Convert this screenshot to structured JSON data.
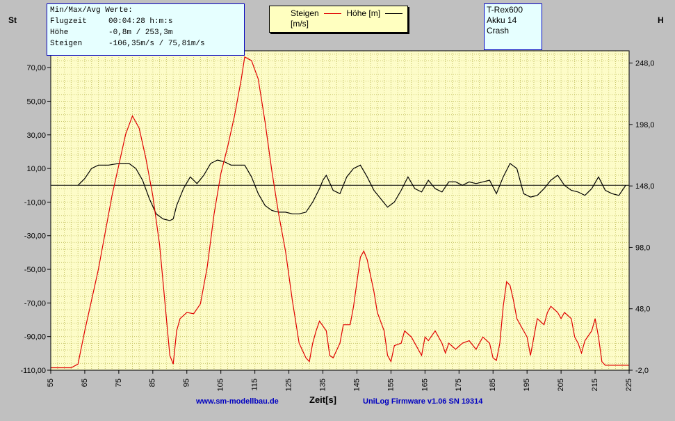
{
  "stats": {
    "heading": "Min/Max/Avg Werte:",
    "rows": [
      {
        "label": "Flugzeit",
        "value": "00:04:28 h:m:s"
      },
      {
        "label": "Höhe",
        "value": "-0,8m / 253,3m"
      },
      {
        "label": "Steigen",
        "value": "-106,35m/s / 75,81m/s"
      }
    ]
  },
  "legend": {
    "series1": "Steigen",
    "series2": "Höhe [m]",
    "unit": "[m/s]"
  },
  "info": {
    "line1": "T-Rex600",
    "line2": "Akku 14",
    "line3": "Crash"
  },
  "left_axis_title": "St",
  "right_axis_title": "H",
  "footer": {
    "website": "www.sm-modellbau.de",
    "firmware": "UniLog Firmware v1.06 SN 19314"
  },
  "colors": {
    "plot_bg": "#fdfcc8",
    "grid": "#c8c66a",
    "hoehe": "#e00000",
    "steigen": "#000000",
    "axis": "#000000"
  },
  "chart_data": {
    "type": "line",
    "xlabel": "Zeit[s]",
    "xlim": [
      55,
      225
    ],
    "xticks": [
      "55",
      "65",
      "75",
      "85",
      "95",
      "105",
      "115",
      "125",
      "135",
      "145",
      "155",
      "165",
      "175",
      "185",
      "195",
      "205",
      "215",
      "225"
    ],
    "ylim_left": [
      -110,
      80
    ],
    "yticks_left": [
      "70,00",
      "50,00",
      "30,00",
      "10,00",
      "-10,00",
      "-30,00",
      "-50,00",
      "-70,00",
      "-90,00",
      "-110,00"
    ],
    "ylim_right": [
      -2,
      258
    ],
    "yticks_right": [
      "248,0",
      "198,0",
      "148,0",
      "98,0",
      "48,0",
      "-2,0"
    ],
    "zero_line_left": 0,
    "series": [
      {
        "name": "Steigen",
        "axis": "left",
        "points": [
          [
            63,
            0
          ],
          [
            65,
            4
          ],
          [
            67,
            10
          ],
          [
            69,
            12
          ],
          [
            72,
            12
          ],
          [
            75,
            13
          ],
          [
            78,
            13
          ],
          [
            80,
            10
          ],
          [
            82,
            3
          ],
          [
            84,
            -8
          ],
          [
            86,
            -17
          ],
          [
            88,
            -20
          ],
          [
            90,
            -21
          ],
          [
            91,
            -20
          ],
          [
            92,
            -12
          ],
          [
            94,
            -2
          ],
          [
            96,
            5
          ],
          [
            98,
            1
          ],
          [
            100,
            6
          ],
          [
            102,
            13
          ],
          [
            104,
            15
          ],
          [
            106,
            14
          ],
          [
            108,
            12
          ],
          [
            110,
            12
          ],
          [
            112,
            12
          ],
          [
            114,
            5
          ],
          [
            116,
            -5
          ],
          [
            118,
            -12
          ],
          [
            120,
            -15
          ],
          [
            122,
            -16
          ],
          [
            124,
            -16
          ],
          [
            126,
            -17
          ],
          [
            128,
            -17
          ],
          [
            130,
            -16
          ],
          [
            132,
            -10
          ],
          [
            134,
            -2
          ],
          [
            135,
            3
          ],
          [
            136,
            6
          ],
          [
            138,
            -3
          ],
          [
            140,
            -5
          ],
          [
            142,
            5
          ],
          [
            144,
            10
          ],
          [
            146,
            12
          ],
          [
            148,
            5
          ],
          [
            150,
            -3
          ],
          [
            152,
            -8
          ],
          [
            154,
            -13
          ],
          [
            156,
            -10
          ],
          [
            158,
            -3
          ],
          [
            160,
            5
          ],
          [
            162,
            -2
          ],
          [
            164,
            -4
          ],
          [
            166,
            3
          ],
          [
            168,
            -2
          ],
          [
            170,
            -4
          ],
          [
            172,
            2
          ],
          [
            174,
            2
          ],
          [
            176,
            0
          ],
          [
            178,
            2
          ],
          [
            180,
            1
          ],
          [
            182,
            2
          ],
          [
            184,
            3
          ],
          [
            186,
            -5
          ],
          [
            188,
            5
          ],
          [
            190,
            13
          ],
          [
            192,
            10
          ],
          [
            194,
            -5
          ],
          [
            196,
            -7
          ],
          [
            198,
            -6
          ],
          [
            200,
            -2
          ],
          [
            202,
            3
          ],
          [
            204,
            6
          ],
          [
            206,
            0
          ],
          [
            208,
            -3
          ],
          [
            210,
            -4
          ],
          [
            212,
            -6
          ],
          [
            214,
            -2
          ],
          [
            216,
            5
          ],
          [
            218,
            -3
          ],
          [
            220,
            -5
          ],
          [
            222,
            -6
          ],
          [
            223,
            -3
          ],
          [
            224,
            0
          ]
        ]
      },
      {
        "name": "Höhe",
        "axis": "right",
        "points": [
          [
            55,
            0
          ],
          [
            58,
            0
          ],
          [
            61,
            0
          ],
          [
            63,
            3
          ],
          [
            65,
            30
          ],
          [
            67,
            55
          ],
          [
            69,
            80
          ],
          [
            71,
            110
          ],
          [
            73,
            140
          ],
          [
            75,
            165
          ],
          [
            77,
            190
          ],
          [
            79,
            205
          ],
          [
            81,
            195
          ],
          [
            83,
            170
          ],
          [
            85,
            140
          ],
          [
            87,
            100
          ],
          [
            89,
            40
          ],
          [
            90,
            10
          ],
          [
            91,
            3
          ],
          [
            92,
            30
          ],
          [
            93,
            40
          ],
          [
            95,
            45
          ],
          [
            97,
            44
          ],
          [
            99,
            52
          ],
          [
            101,
            82
          ],
          [
            103,
            125
          ],
          [
            105,
            158
          ],
          [
            107,
            180
          ],
          [
            109,
            205
          ],
          [
            111,
            235
          ],
          [
            112,
            253
          ],
          [
            114,
            250
          ],
          [
            116,
            235
          ],
          [
            118,
            200
          ],
          [
            120,
            160
          ],
          [
            122,
            125
          ],
          [
            124,
            95
          ],
          [
            126,
            55
          ],
          [
            128,
            20
          ],
          [
            130,
            8
          ],
          [
            131,
            5
          ],
          [
            132,
            20
          ],
          [
            133,
            30
          ],
          [
            134,
            38
          ],
          [
            136,
            30
          ],
          [
            137,
            10
          ],
          [
            138,
            8
          ],
          [
            140,
            20
          ],
          [
            141,
            35
          ],
          [
            143,
            35
          ],
          [
            144,
            50
          ],
          [
            146,
            90
          ],
          [
            147,
            95
          ],
          [
            148,
            88
          ],
          [
            150,
            62
          ],
          [
            151,
            45
          ],
          [
            153,
            30
          ],
          [
            154,
            10
          ],
          [
            155,
            5
          ],
          [
            156,
            18
          ],
          [
            158,
            20
          ],
          [
            159,
            30
          ],
          [
            161,
            25
          ],
          [
            162,
            20
          ],
          [
            164,
            10
          ],
          [
            165,
            25
          ],
          [
            166,
            22
          ],
          [
            168,
            30
          ],
          [
            170,
            20
          ],
          [
            171,
            12
          ],
          [
            172,
            20
          ],
          [
            174,
            15
          ],
          [
            176,
            20
          ],
          [
            178,
            22
          ],
          [
            180,
            15
          ],
          [
            182,
            25
          ],
          [
            184,
            20
          ],
          [
            185,
            8
          ],
          [
            186,
            6
          ],
          [
            187,
            20
          ],
          [
            188,
            50
          ],
          [
            189,
            70
          ],
          [
            190,
            67
          ],
          [
            191,
            55
          ],
          [
            192,
            40
          ],
          [
            194,
            30
          ],
          [
            195,
            25
          ],
          [
            196,
            10
          ],
          [
            197,
            25
          ],
          [
            198,
            40
          ],
          [
            200,
            35
          ],
          [
            201,
            45
          ],
          [
            202,
            50
          ],
          [
            204,
            45
          ],
          [
            205,
            40
          ],
          [
            206,
            45
          ],
          [
            208,
            40
          ],
          [
            209,
            25
          ],
          [
            210,
            20
          ],
          [
            211,
            12
          ],
          [
            212,
            22
          ],
          [
            214,
            30
          ],
          [
            215,
            40
          ],
          [
            216,
            25
          ],
          [
            217,
            5
          ],
          [
            218,
            2
          ],
          [
            221,
            2
          ],
          [
            225,
            2
          ]
        ]
      }
    ]
  }
}
